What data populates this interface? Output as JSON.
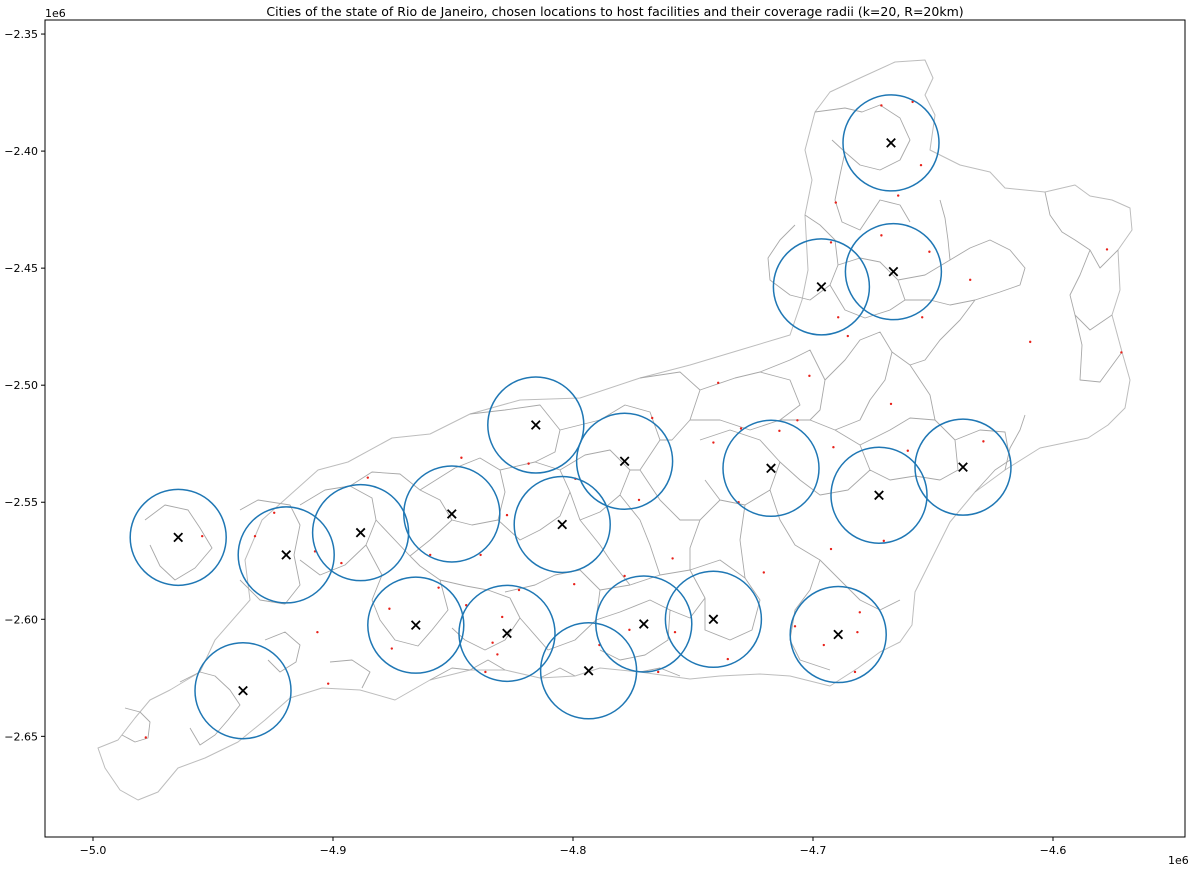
{
  "chart_data": {
    "type": "scatter",
    "title": "Cities of the state of Rio de Janeiro, chosen locations to host facilities and their coverage radii (k=20, R=20km)",
    "xlabel": "",
    "ylabel": "",
    "x_offset_label": "1e6",
    "y_offset_label": "1e6",
    "xlim": [
      -5020000.0,
      -4545000.0
    ],
    "ylim": [
      -2693000.0,
      -2344000.0
    ],
    "x_ticks": [
      -5000000.0,
      -4900000.0,
      -4800000.0,
      -4700000.0,
      -4600000.0
    ],
    "x_tick_labels": [
      "−5.0",
      "−4.9",
      "−4.8",
      "−4.7",
      "−4.6"
    ],
    "y_ticks": [
      -2350000.0,
      -2400000.0,
      -2450000.0,
      -2500000.0,
      -2550000.0,
      -2600000.0,
      -2650000.0
    ],
    "y_tick_labels": [
      "−2.35",
      "−2.40",
      "−2.45",
      "−2.50",
      "−2.55",
      "−2.60",
      "−2.65"
    ],
    "grid": false,
    "coverage_radius_m": 20000,
    "k": 20,
    "colors": {
      "radius": "#1f77b4",
      "city": "#e8211a",
      "facility": "#000000",
      "border": "#a8a8a8"
    },
    "facilities": [
      {
        "x": -4667500.0,
        "y": -2396500.0
      },
      {
        "x": -4666500.0,
        "y": -2451500.0
      },
      {
        "x": -4696500.0,
        "y": -2458000.0
      },
      {
        "x": -4815500.0,
        "y": -2517000.0
      },
      {
        "x": -4778500.0,
        "y": -2532500.0
      },
      {
        "x": -4717500.0,
        "y": -2535500.0
      },
      {
        "x": -4637500.0,
        "y": -2535000.0
      },
      {
        "x": -4672500.0,
        "y": -2547000.0
      },
      {
        "x": -4850500.0,
        "y": -2555000.0
      },
      {
        "x": -4804500.0,
        "y": -2559500.0
      },
      {
        "x": -4888500.0,
        "y": -2563000.0
      },
      {
        "x": -4964500.0,
        "y": -2565000.0
      },
      {
        "x": -4919500.0,
        "y": -2572500.0
      },
      {
        "x": -4741500.0,
        "y": -2600000.0
      },
      {
        "x": -4770500.0,
        "y": -2602000.0
      },
      {
        "x": -4865500.0,
        "y": -2602500.0
      },
      {
        "x": -4827500.0,
        "y": -2606000.0
      },
      {
        "x": -4689500.0,
        "y": -2606500.0
      },
      {
        "x": -4793500.0,
        "y": -2622000.0
      },
      {
        "x": -4937500.0,
        "y": -2630500.0
      }
    ],
    "cities": [
      {
        "x": -4671500.0,
        "y": -2380500.0
      },
      {
        "x": -4658500.0,
        "y": -2379000.0
      },
      {
        "x": -4655000.0,
        "y": -2406000.0
      },
      {
        "x": -4664500.0,
        "y": -2419000.0
      },
      {
        "x": -4690500.0,
        "y": -2422000.0
      },
      {
        "x": -4671500.0,
        "y": -2436000.0
      },
      {
        "x": -4692500.0,
        "y": -2439000.0
      },
      {
        "x": -4651500.0,
        "y": -2443000.0
      },
      {
        "x": -4634500.0,
        "y": -2455000.0
      },
      {
        "x": -4577500.0,
        "y": -2442000.0
      },
      {
        "x": -4689500.0,
        "y": -2471000.0
      },
      {
        "x": -4654500.0,
        "y": -2471000.0
      },
      {
        "x": -4609500.0,
        "y": -2481500.0
      },
      {
        "x": -4571500.0,
        "y": -2486000.0
      },
      {
        "x": -4685500.0,
        "y": -2479000.0
      },
      {
        "x": -4701500.0,
        "y": -2496000.0
      },
      {
        "x": -4739500.0,
        "y": -2499000.0
      },
      {
        "x": -4667500.0,
        "y": -2508000.0
      },
      {
        "x": -4706500.0,
        "y": -2515000.0
      },
      {
        "x": -4767000.0,
        "y": -2514000.0
      },
      {
        "x": -4730000.0,
        "y": -2518500.0
      },
      {
        "x": -4714000.0,
        "y": -2519500.0
      },
      {
        "x": -4691500.0,
        "y": -2526500.0
      },
      {
        "x": -4741500.0,
        "y": -2524500.0
      },
      {
        "x": -4629000.0,
        "y": -2524000.0
      },
      {
        "x": -4660500.0,
        "y": -2528000.0
      },
      {
        "x": -4818500.0,
        "y": -2533500.0
      },
      {
        "x": -4799000.0,
        "y": -2540000.0
      },
      {
        "x": -4772500.0,
        "y": -2549000.0
      },
      {
        "x": -4731000.0,
        "y": -2550000.0
      },
      {
        "x": -4846500.0,
        "y": -2531000.0
      },
      {
        "x": -4885500.0,
        "y": -2539500.0
      },
      {
        "x": -4827500.0,
        "y": -2555500.0
      },
      {
        "x": -4924500.0,
        "y": -2554500.0
      },
      {
        "x": -4954500.0,
        "y": -2564500.0
      },
      {
        "x": -4932500.0,
        "y": -2564500.0
      },
      {
        "x": -4907500.0,
        "y": -2571000.0
      },
      {
        "x": -4896500.0,
        "y": -2576000.0
      },
      {
        "x": -4859500.0,
        "y": -2572500.0
      },
      {
        "x": -4838500.0,
        "y": -2572500.0
      },
      {
        "x": -4758500.0,
        "y": -2574000.0
      },
      {
        "x": -4692500.0,
        "y": -2570000.0
      },
      {
        "x": -4670500.0,
        "y": -2566500.0
      },
      {
        "x": -4799500.0,
        "y": -2585000.0
      },
      {
        "x": -4822500.0,
        "y": -2587500.0
      },
      {
        "x": -4856000.0,
        "y": -2586500.0
      },
      {
        "x": -4778500.0,
        "y": -2581500.0
      },
      {
        "x": -4720500.0,
        "y": -2580000.0
      },
      {
        "x": -4844500.0,
        "y": -2594000.0
      },
      {
        "x": -4876500.0,
        "y": -2595500.0
      },
      {
        "x": -4829500.0,
        "y": -2599000.0
      },
      {
        "x": -4680500.0,
        "y": -2597000.0
      },
      {
        "x": -4906500.0,
        "y": -2605500.0
      },
      {
        "x": -4776500.0,
        "y": -2604500.0
      },
      {
        "x": -4757500.0,
        "y": -2605500.0
      },
      {
        "x": -4707500.0,
        "y": -2603000.0
      },
      {
        "x": -4681500.0,
        "y": -2605500.0
      },
      {
        "x": -4682500.0,
        "y": -2622500.0
      },
      {
        "x": -4695500.0,
        "y": -2611000.0
      },
      {
        "x": -4833500.0,
        "y": -2610000.0
      },
      {
        "x": -4875500.0,
        "y": -2612500.0
      },
      {
        "x": -4789000.0,
        "y": -2611000.0
      },
      {
        "x": -4831500.0,
        "y": -2615000.0
      },
      {
        "x": -4735500.0,
        "y": -2617000.0
      },
      {
        "x": -4836500.0,
        "y": -2622500.0
      },
      {
        "x": -4764500.0,
        "y": -2622500.0
      },
      {
        "x": -4902000.0,
        "y": -2627500.0
      },
      {
        "x": -4978000.0,
        "y": -2650500.0
      }
    ]
  }
}
